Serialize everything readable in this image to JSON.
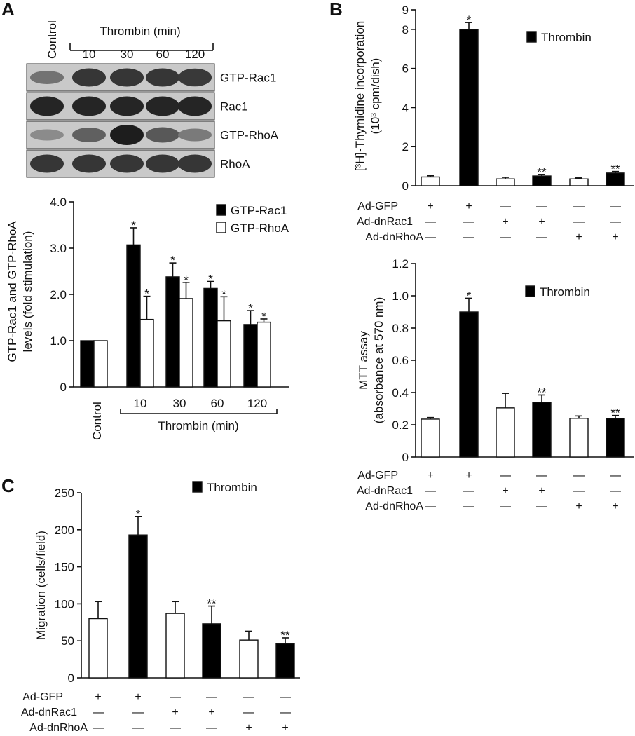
{
  "panels": {
    "A": "A",
    "B": "B",
    "C": "C"
  },
  "blot": {
    "control_label": "Control",
    "thrombin_label": "Thrombin (min)",
    "times": [
      "10",
      "30",
      "60",
      "120"
    ],
    "rows": [
      {
        "label": "GTP-Rac1",
        "intensity": [
          0.45,
          0.8,
          0.8,
          0.8,
          0.78
        ]
      },
      {
        "label": "Rac1",
        "intensity": [
          0.9,
          0.9,
          0.9,
          0.9,
          0.9
        ]
      },
      {
        "label": "GTP-RhoA",
        "intensity": [
          0.3,
          0.55,
          0.95,
          0.6,
          0.4
        ]
      },
      {
        "label": "RhoA",
        "intensity": [
          0.8,
          0.8,
          0.8,
          0.8,
          0.8
        ]
      }
    ]
  },
  "chart_data": [
    {
      "id": "A",
      "type": "bar",
      "categories": [
        "Control",
        "10",
        "30",
        "60",
        "120"
      ],
      "group_label": "Thrombin (min)",
      "series": [
        {
          "name": "GTP-Rac1",
          "color": "#000000",
          "values": [
            1.0,
            3.07,
            2.38,
            2.13,
            1.35
          ],
          "errors": [
            0,
            0.37,
            0.3,
            0.15,
            0.3
          ],
          "stars": [
            "",
            "*",
            "*",
            "*",
            "*"
          ]
        },
        {
          "name": "GTP-RhoA",
          "color": "#ffffff",
          "values": [
            1.0,
            1.46,
            1.91,
            1.43,
            1.4
          ],
          "errors": [
            0,
            0.5,
            0.35,
            0.52,
            0.07
          ],
          "stars": [
            "",
            "*",
            "*",
            "*",
            "*"
          ]
        }
      ],
      "ylabel": [
        "GTP-Rac1 and GTP-RhoA",
        "levels (fold stimulation)"
      ],
      "ylim": [
        0,
        4.0
      ],
      "yticks": [
        0,
        1.0,
        2.0,
        3.0,
        4.0
      ],
      "ytick_labels": [
        "0",
        "1.0",
        "2.0",
        "3.0",
        "4.0"
      ]
    },
    {
      "id": "B1",
      "type": "bar",
      "values": [
        0.45,
        8.0,
        0.35,
        0.5,
        0.35,
        0.65
      ],
      "errors": [
        0.06,
        0.35,
        0.08,
        0.08,
        0.05,
        0.08
      ],
      "colors": [
        "#ffffff",
        "#000000",
        "#ffffff",
        "#000000",
        "#ffffff",
        "#000000"
      ],
      "stars": [
        "",
        "*",
        "",
        "**",
        "",
        "**"
      ],
      "legend": "Thrombin",
      "ylabel": [
        "[³H]-Thymidine incorporation",
        "(10³ cpm/dish)"
      ],
      "ylim": [
        0,
        9
      ],
      "yticks": [
        0,
        2,
        4,
        6,
        8,
        9
      ],
      "ytick_labels": [
        "0",
        "2",
        "4",
        "6",
        "8",
        "9"
      ],
      "conditions": [
        {
          "label": "Ad-GFP",
          "signs": [
            "+",
            "+",
            "—",
            "—",
            "—",
            "—"
          ]
        },
        {
          "label": "Ad-dnRac1",
          "signs": [
            "—",
            "—",
            "+",
            "+",
            "—",
            "—"
          ]
        },
        {
          "label": "Ad-dnRhoA",
          "signs": [
            "—",
            "—",
            "—",
            "—",
            "+",
            "+"
          ]
        }
      ]
    },
    {
      "id": "B2",
      "type": "bar",
      "values": [
        0.235,
        0.9,
        0.305,
        0.34,
        0.24,
        0.24
      ],
      "errors": [
        0.01,
        0.085,
        0.09,
        0.045,
        0.015,
        0.018
      ],
      "colors": [
        "#ffffff",
        "#000000",
        "#ffffff",
        "#000000",
        "#ffffff",
        "#000000"
      ],
      "stars": [
        "",
        "*",
        "",
        "**",
        "",
        "**"
      ],
      "legend": "Thrombin",
      "ylabel": [
        "MTT assay",
        "(absorbance at 570 nm)"
      ],
      "ylim": [
        0,
        1.2
      ],
      "yticks": [
        0,
        0.2,
        0.4,
        0.6,
        0.8,
        1.0,
        1.2
      ],
      "ytick_labels": [
        "0",
        "0.2",
        "0.4",
        "0.6",
        "0.8",
        "1.0",
        "1.2"
      ],
      "conditions": [
        {
          "label": "Ad-GFP",
          "signs": [
            "+",
            "+",
            "—",
            "—",
            "—",
            "—"
          ]
        },
        {
          "label": "Ad-dnRac1",
          "signs": [
            "—",
            "—",
            "+",
            "+",
            "—",
            "—"
          ]
        },
        {
          "label": "Ad-dnRhoA",
          "signs": [
            "—",
            "—",
            "—",
            "—",
            "+",
            "+"
          ]
        }
      ]
    },
    {
      "id": "C",
      "type": "bar",
      "values": [
        80,
        193,
        87,
        73,
        51,
        46
      ],
      "errors": [
        23,
        25,
        16,
        24,
        12,
        8
      ],
      "colors": [
        "#ffffff",
        "#000000",
        "#ffffff",
        "#000000",
        "#ffffff",
        "#000000"
      ],
      "stars": [
        "",
        "*",
        "",
        "**",
        "",
        "**"
      ],
      "legend": "Thrombin",
      "ylabel": [
        "Migration (cells/field)"
      ],
      "ylim": [
        0,
        250
      ],
      "yticks": [
        0,
        50,
        100,
        150,
        200,
        250
      ],
      "ytick_labels": [
        "0",
        "50",
        "100",
        "150",
        "200",
        "250"
      ],
      "conditions": [
        {
          "label": "Ad-GFP",
          "signs": [
            "+",
            "+",
            "—",
            "—",
            "—",
            "—"
          ]
        },
        {
          "label": "Ad-dnRac1",
          "signs": [
            "—",
            "—",
            "+",
            "+",
            "—",
            "—"
          ]
        },
        {
          "label": "Ad-dnRhoA",
          "signs": [
            "—",
            "—",
            "—",
            "—",
            "+",
            "+"
          ]
        }
      ]
    }
  ]
}
